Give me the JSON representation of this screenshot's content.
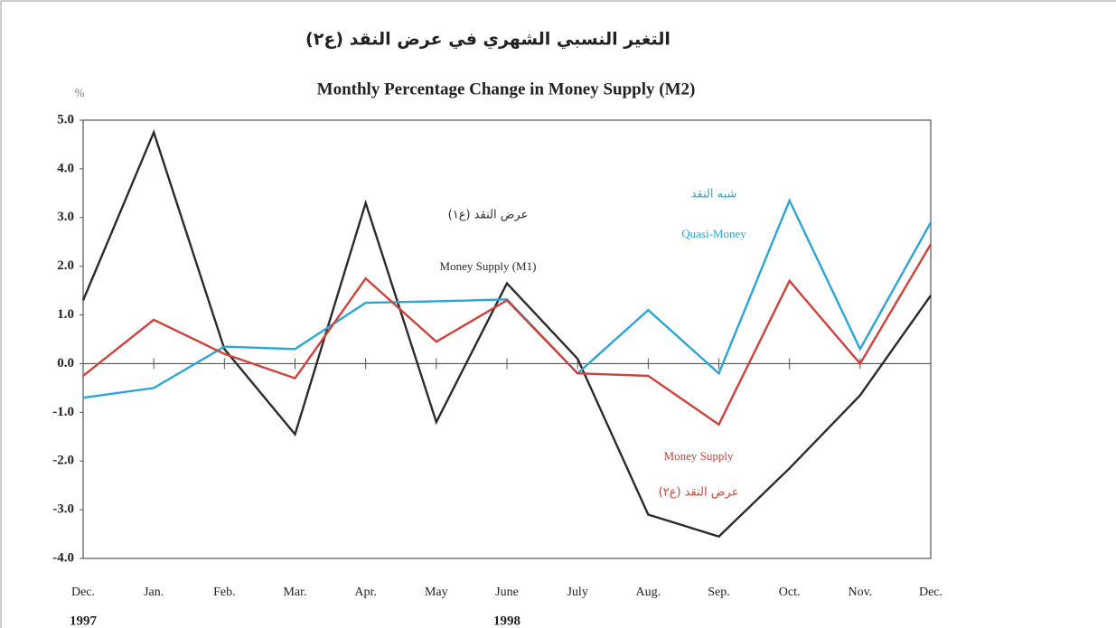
{
  "chart_data": {
    "type": "line",
    "title_ar": "التغير النسبي الشهري في عرض النقد (ع٢)",
    "title": "Monthly Percentage Change  in Money Supply (M2)",
    "y_label": "%",
    "categories": [
      "Dec.",
      "Jan.",
      "Feb.",
      "Mar.",
      "Apr.",
      "May",
      "June",
      "July",
      "Aug.",
      "Sep.",
      "Oct.",
      "Nov.",
      "Dec."
    ],
    "year_labels": [
      "1997",
      null,
      null,
      null,
      null,
      null,
      "1998",
      null,
      null,
      null,
      null,
      null,
      null
    ],
    "ylim": [
      -4.0,
      5.0
    ],
    "yticks": [
      {
        "value": 5,
        "label": "5.0"
      },
      {
        "value": 4,
        "label": "4.0"
      },
      {
        "value": 3,
        "label": "3.0"
      },
      {
        "value": 2,
        "label": "2.0"
      },
      {
        "value": 1,
        "label": "1.0"
      },
      {
        "value": 0,
        "label": "0.0"
      },
      {
        "value": -1,
        "label": "-1.0"
      },
      {
        "value": -2,
        "label": "-2.0"
      },
      {
        "value": -3,
        "label": "-3.0"
      },
      {
        "value": -4,
        "label": "-4.0"
      }
    ],
    "series": [
      {
        "name": "Money Supply (M1)",
        "name_ar": "عرض النقد (ع١)",
        "color": "#2b2b2b",
        "values": [
          1.3,
          4.75,
          0.3,
          -1.45,
          3.3,
          -1.2,
          1.65,
          0.1,
          -3.1,
          -3.55,
          -2.15,
          -0.65,
          1.4
        ]
      },
      {
        "name": "Quasi-Money",
        "name_ar": "شبه النقد",
        "color": "#2aa6d6",
        "values": [
          -0.7,
          -0.5,
          0.35,
          0.3,
          1.25,
          1.28,
          1.32,
          -0.2,
          1.1,
          -0.2,
          3.35,
          0.3,
          2.9
        ]
      },
      {
        "name": "Money Supply",
        "name_ar": "عرض النقد (ع٢)",
        "color": "#d0413a",
        "values": [
          -0.25,
          0.9,
          0.2,
          -0.3,
          1.75,
          0.45,
          1.3,
          -0.2,
          -0.25,
          -1.25,
          1.7,
          0.0,
          2.45
        ]
      }
    ]
  }
}
